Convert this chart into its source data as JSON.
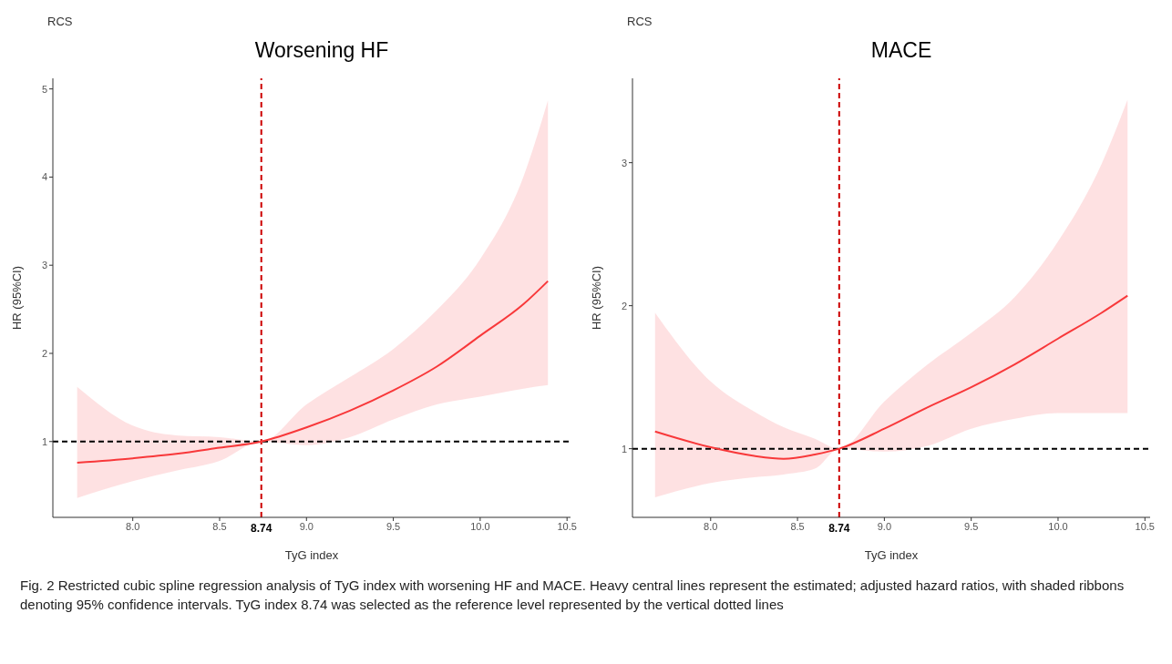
{
  "chart_data": [
    {
      "type": "line",
      "title": "Worsening HF",
      "subtitle": "RCS",
      "xlabel": "TyG index",
      "ylabel": "HR (95%CI)",
      "x": [
        7.68,
        8.0,
        8.25,
        8.5,
        8.74,
        9.0,
        9.25,
        9.5,
        9.75,
        10.0,
        10.25,
        10.39
      ],
      "series": [
        {
          "color": "#f8383a",
          "values": [
            0.76,
            0.81,
            0.86,
            0.93,
            1.0,
            1.16,
            1.35,
            1.58,
            1.85,
            2.2,
            2.56,
            2.82
          ],
          "lower": [
            0.36,
            0.55,
            0.67,
            0.78,
            1.0,
            0.96,
            1.05,
            1.25,
            1.42,
            1.51,
            1.6,
            1.64
          ],
          "upper": [
            1.62,
            1.18,
            1.07,
            1.05,
            1.0,
            1.42,
            1.73,
            2.05,
            2.49,
            3.07,
            4.01,
            4.87
          ]
        }
      ],
      "xlim": [
        7.54,
        10.52
      ],
      "xticks": [
        {
          "value": 8,
          "label": "8.0"
        },
        8.5,
        {
          "value": 9,
          "label": "9.0"
        },
        9.5,
        {
          "value": 10,
          "label": "10.0"
        },
        10.5
      ],
      "ylim": [
        0.14,
        5.12
      ],
      "yticks": [
        1,
        2,
        3,
        4,
        5
      ],
      "ref_lines": [
        {
          "axis": "x",
          "value": 8.74,
          "label": "8.74",
          "color": "#cc0000",
          "line_style": "dashed"
        },
        {
          "axis": "y",
          "value": 1,
          "color": "#000000",
          "line_style": "dashed"
        }
      ],
      "grid": false,
      "legend": false,
      "marker": "none",
      "line_style": "solid",
      "annotations": [
        "Fig. 2  Restricted cubic spline regression analysis of TyG index with worsening HF and MACE. Heavy central lines represent the estimated; adjusted hazard ratios, with shaded ribbons denoting 95% confidence intervals. TyG index 8.74 was selected as the reference level represented by the vertical dotted lines"
      ]
    },
    {
      "type": "line",
      "title": "MACE",
      "subtitle": "RCS",
      "xlabel": "TyG index",
      "ylabel": "HR (95%CI)",
      "x": [
        7.68,
        8.0,
        8.25,
        8.42,
        8.6,
        8.74,
        9.0,
        9.25,
        9.5,
        9.75,
        10.0,
        10.25,
        10.4
      ],
      "series": [
        {
          "color": "#f8383a",
          "values": [
            1.12,
            1.01,
            0.95,
            0.93,
            0.96,
            1.0,
            1.14,
            1.29,
            1.43,
            1.59,
            1.77,
            1.95,
            2.07
          ],
          "lower": [
            0.66,
            0.76,
            0.8,
            0.82,
            0.86,
            1.0,
            0.98,
            1.02,
            1.14,
            1.21,
            1.25,
            1.25,
            1.25
          ],
          "upper": [
            1.95,
            1.47,
            1.26,
            1.15,
            1.07,
            1.0,
            1.33,
            1.59,
            1.81,
            2.06,
            2.45,
            2.99,
            3.44
          ]
        }
      ],
      "xlim": [
        7.55,
        10.53
      ],
      "xticks": [
        {
          "value": 8,
          "label": "8.0"
        },
        8.5,
        {
          "value": 9,
          "label": "9.0"
        },
        9.5,
        {
          "value": 10,
          "label": "10.0"
        },
        10.5
      ],
      "ylim": [
        0.52,
        3.59
      ],
      "yticks": [
        1,
        2,
        3
      ],
      "ref_lines": [
        {
          "axis": "x",
          "value": 8.74,
          "label": "8.74",
          "color": "#cc0000",
          "line_style": "dashed"
        },
        {
          "axis": "y",
          "value": 1,
          "color": "#000000",
          "line_style": "dashed"
        }
      ],
      "grid": false,
      "legend": false,
      "marker": "none",
      "line_style": "solid"
    }
  ]
}
